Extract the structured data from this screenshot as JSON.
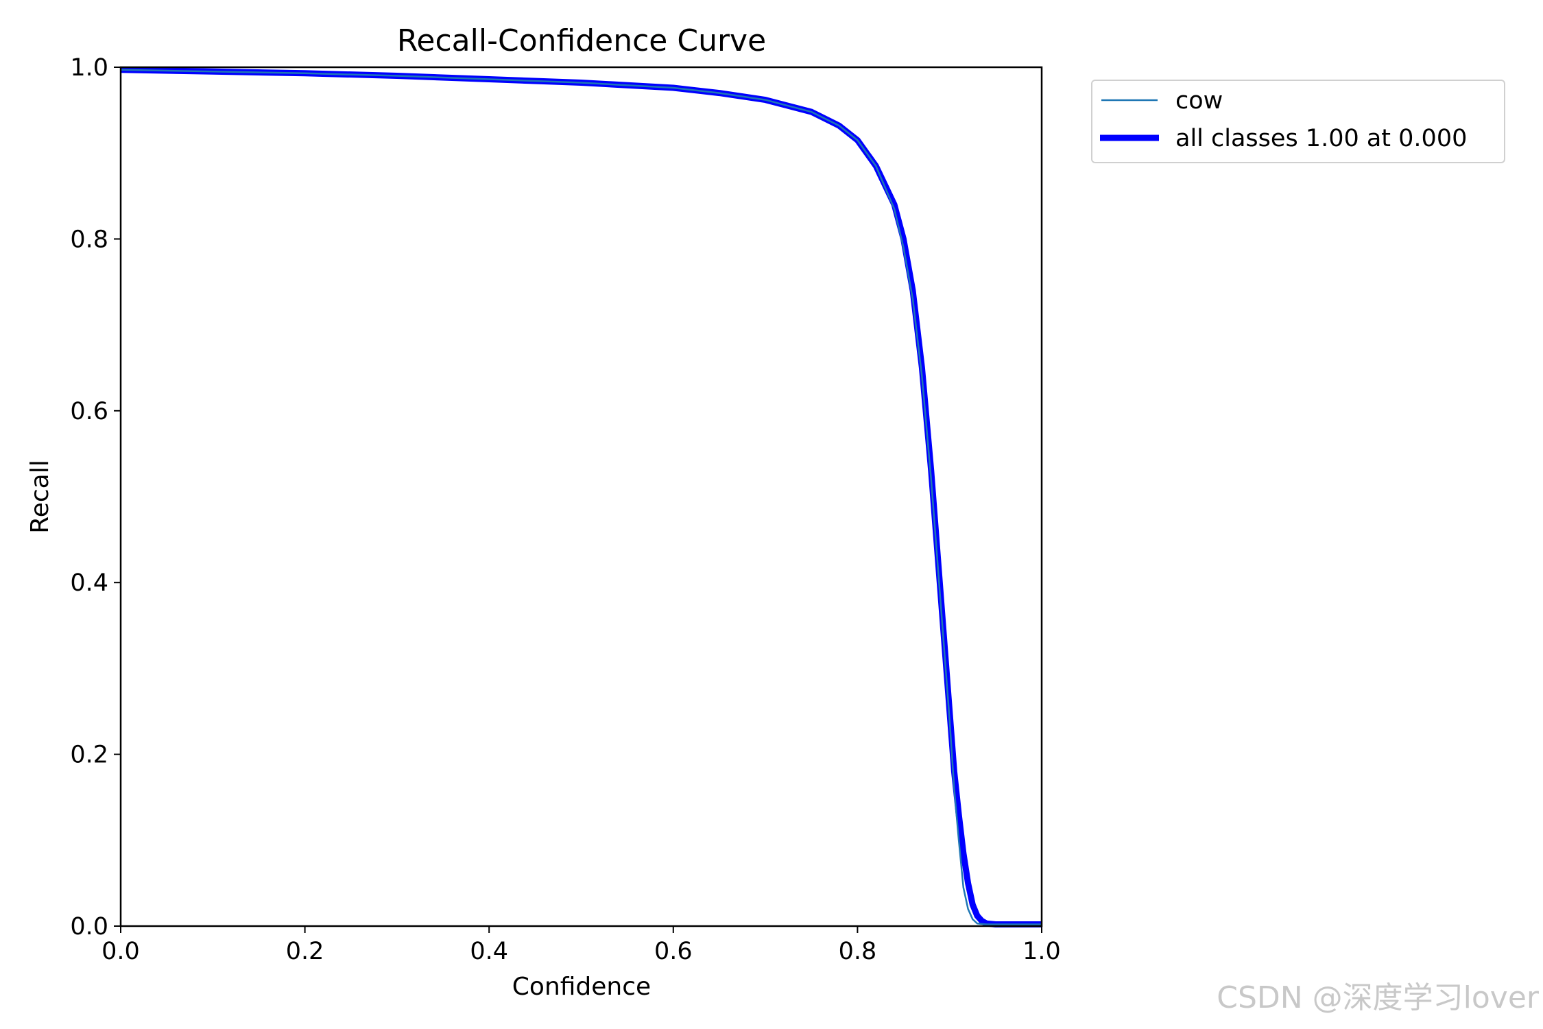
{
  "chart_data": {
    "type": "line",
    "title": "Recall-Confidence Curve",
    "xlabel": "Confidence",
    "ylabel": "Recall",
    "xlim": [
      0.0,
      1.0
    ],
    "ylim": [
      0.0,
      1.0
    ],
    "x_ticks": [
      "0.0",
      "0.2",
      "0.4",
      "0.6",
      "0.8",
      "1.0"
    ],
    "y_ticks": [
      "0.0",
      "0.2",
      "0.4",
      "0.6",
      "0.8",
      "1.0"
    ],
    "grid": false,
    "legend_position": "outside-top-right",
    "series": [
      {
        "name": "cow",
        "color": "#1f77b4",
        "x": [
          0.0,
          0.1,
          0.2,
          0.3,
          0.4,
          0.5,
          0.6,
          0.65,
          0.7,
          0.75,
          0.78,
          0.8,
          0.82,
          0.84,
          0.85,
          0.86,
          0.87,
          0.88,
          0.89,
          0.9,
          0.905,
          0.91,
          0.915,
          0.92,
          0.925,
          0.93,
          0.94,
          0.95,
          1.0
        ],
        "y": [
          0.997,
          0.995,
          0.993,
          0.99,
          0.986,
          0.982,
          0.976,
          0.97,
          0.962,
          0.948,
          0.932,
          0.915,
          0.885,
          0.835,
          0.79,
          0.73,
          0.64,
          0.52,
          0.38,
          0.24,
          0.16,
          0.1,
          0.045,
          0.02,
          0.008,
          0.003,
          0.002,
          0.002,
          0.002
        ]
      },
      {
        "name": "all classes 1.00 at 0.000",
        "color": "#0000ff",
        "x": [
          0.0,
          0.1,
          0.2,
          0.3,
          0.4,
          0.5,
          0.6,
          0.65,
          0.7,
          0.75,
          0.78,
          0.8,
          0.82,
          0.84,
          0.85,
          0.86,
          0.87,
          0.88,
          0.89,
          0.9,
          0.905,
          0.91,
          0.915,
          0.92,
          0.925,
          0.93,
          0.935,
          0.94,
          0.95,
          1.0
        ],
        "y": [
          0.997,
          0.995,
          0.993,
          0.99,
          0.986,
          0.982,
          0.976,
          0.97,
          0.962,
          0.948,
          0.932,
          0.915,
          0.885,
          0.84,
          0.8,
          0.74,
          0.65,
          0.53,
          0.39,
          0.25,
          0.18,
          0.13,
          0.085,
          0.05,
          0.025,
          0.012,
          0.006,
          0.003,
          0.002,
          0.002
        ]
      }
    ]
  },
  "watermark": "CSDN @深度学习lover"
}
